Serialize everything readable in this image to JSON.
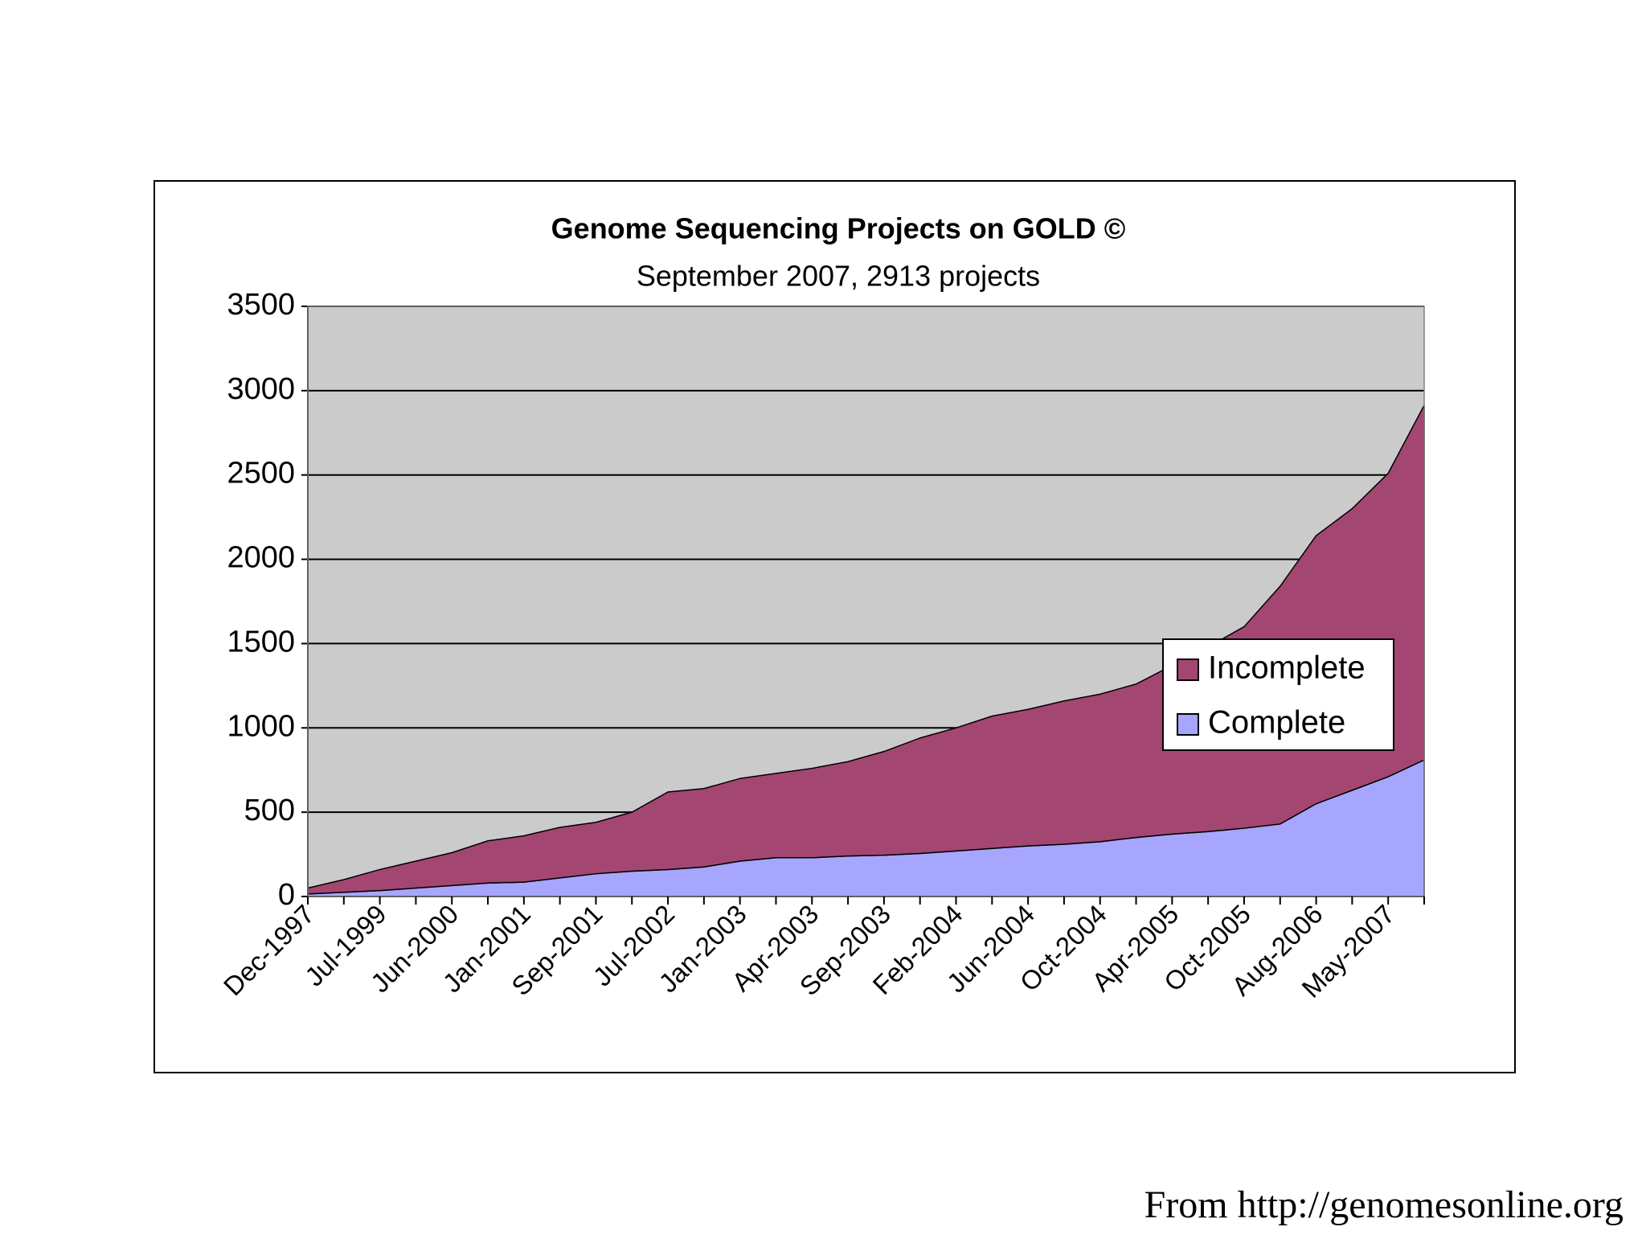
{
  "chart_data": {
    "type": "stacked-area",
    "title": "Genome Sequencing Projects on GOLD ©",
    "subtitle": "September 2007, 2913 projects",
    "categories": [
      "Dec-1997",
      null,
      "Jul-1999",
      null,
      "Jun-2000",
      null,
      "Jan-2001",
      null,
      "Sep-2001",
      null,
      "Jul-2002",
      null,
      "Jan-2003",
      null,
      "Apr-2003",
      null,
      "Sep-2003",
      null,
      "Feb-2004",
      null,
      "Jun-2004",
      null,
      "Oct-2004",
      null,
      "Apr-2005",
      null,
      "Oct-2005",
      null,
      "Aug-2006",
      null,
      "May-2007",
      null
    ],
    "series": [
      {
        "name": "Incomplete",
        "color": "#a44672",
        "values": [
          35,
          75,
          125,
          160,
          195,
          250,
          275,
          300,
          305,
          350,
          460,
          465,
          490,
          500,
          530,
          560,
          615,
          685,
          730,
          785,
          810,
          850,
          875,
          910,
          1000,
          1095,
          1195,
          1410,
          1590,
          1670,
          1800,
          2103
        ]
      },
      {
        "name": "Complete",
        "color": "#a6a6ff",
        "values": [
          15,
          25,
          35,
          50,
          65,
          80,
          85,
          110,
          135,
          150,
          160,
          175,
          210,
          230,
          230,
          240,
          245,
          255,
          270,
          285,
          300,
          310,
          325,
          350,
          370,
          385,
          405,
          430,
          550,
          630,
          710,
          810
        ]
      }
    ],
    "ylim": [
      0,
      3500
    ],
    "yticks": [
      0,
      500,
      1000,
      1500,
      2000,
      2500,
      3000,
      3500
    ],
    "grid": true,
    "legend": "right",
    "plot_background": "#cbcbcb",
    "source": "From http://genomesonline.org"
  }
}
